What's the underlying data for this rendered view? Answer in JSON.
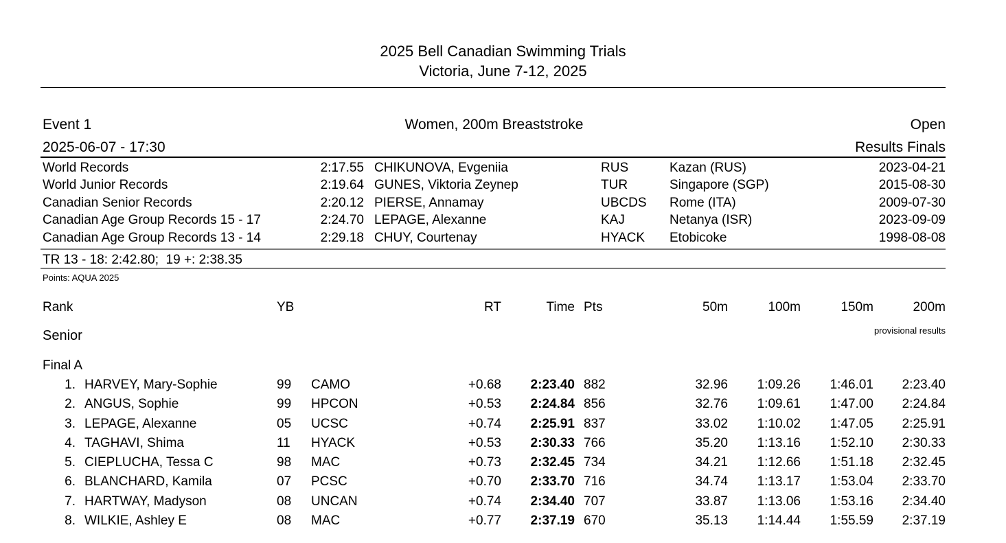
{
  "colors": {
    "text": "#000000",
    "rule_dark": "#000000",
    "rule_gray": "#7b7b7b"
  },
  "meet": {
    "title": "2025 Bell Canadian Swimming Trials",
    "subtitle": "Victoria, June 7-12, 2025"
  },
  "event": {
    "number": "Event 1",
    "name": "Women, 200m Breaststroke",
    "category": "Open",
    "datetime": "2025-06-07 - 17:30",
    "results_type": "Results Finals"
  },
  "records": [
    {
      "label": "World Records",
      "time": "2:17.55",
      "holder": "CHIKUNOVA, Evgeniia",
      "nation": "RUS",
      "location": "Kazan (RUS)",
      "date": "2023-04-21"
    },
    {
      "label": "World Junior Records",
      "time": "2:19.64",
      "holder": "GUNES, Viktoria Zeynep",
      "nation": "TUR",
      "location": "Singapore (SGP)",
      "date": "2015-08-30"
    },
    {
      "label": "Canadian Senior Records",
      "time": "2:20.12",
      "holder": "PIERSE, Annamay",
      "nation": "UBCDS",
      "location": "Rome (ITA)",
      "date": "2009-07-30"
    },
    {
      "label": "Canadian Age Group Records 15 - 17",
      "time": "2:24.70",
      "holder": "LEPAGE, Alexanne",
      "nation": "KAJ",
      "location": "Netanya (ISR)",
      "date": "2023-09-09"
    },
    {
      "label": "Canadian Age Group Records 13 - 14",
      "time": "2:29.18",
      "holder": "CHUY, Courtenay",
      "nation": "HYACK",
      "location": "Etobicoke",
      "date": "1998-08-08"
    }
  ],
  "qualifying_line": "TR 13 - 18: 2:42.80;  19 +: 2:38.35",
  "points_note": "Points: AQUA 2025",
  "table": {
    "headers": {
      "rank": "Rank",
      "yb": "YB",
      "rt": "RT",
      "time": "Time",
      "pts": "Pts",
      "s50": "50m",
      "s100": "100m",
      "s150": "150m",
      "s200": "200m"
    },
    "section": "Senior",
    "provisional": "provisional results",
    "heat": "Final A",
    "rows": [
      {
        "rank": "1.",
        "name": "HARVEY, Mary-Sophie",
        "yb": "99",
        "club": "CAMO",
        "rt": "+0.68",
        "time": "2:23.40",
        "pts": "882",
        "s50": "32.96",
        "s100": "1:09.26",
        "s150": "1:46.01",
        "s200": "2:23.40"
      },
      {
        "rank": "2.",
        "name": "ANGUS, Sophie",
        "yb": "99",
        "club": "HPCON",
        "rt": "+0.53",
        "time": "2:24.84",
        "pts": "856",
        "s50": "32.76",
        "s100": "1:09.61",
        "s150": "1:47.00",
        "s200": "2:24.84"
      },
      {
        "rank": "3.",
        "name": "LEPAGE, Alexanne",
        "yb": "05",
        "club": "UCSC",
        "rt": "+0.74",
        "time": "2:25.91",
        "pts": "837",
        "s50": "33.02",
        "s100": "1:10.02",
        "s150": "1:47.05",
        "s200": "2:25.91"
      },
      {
        "rank": "4.",
        "name": "TAGHAVI, Shima",
        "yb": "11",
        "club": "HYACK",
        "rt": "+0.53",
        "time": "2:30.33",
        "pts": "766",
        "s50": "35.20",
        "s100": "1:13.16",
        "s150": "1:52.10",
        "s200": "2:30.33"
      },
      {
        "rank": "5.",
        "name": "CIEPLUCHA, Tessa C",
        "yb": "98",
        "club": "MAC",
        "rt": "+0.73",
        "time": "2:32.45",
        "pts": "734",
        "s50": "34.21",
        "s100": "1:12.66",
        "s150": "1:51.18",
        "s200": "2:32.45"
      },
      {
        "rank": "6.",
        "name": "BLANCHARD, Kamila",
        "yb": "07",
        "club": "PCSC",
        "rt": "+0.70",
        "time": "2:33.70",
        "pts": "716",
        "s50": "34.74",
        "s100": "1:13.17",
        "s150": "1:53.04",
        "s200": "2:33.70"
      },
      {
        "rank": "7.",
        "name": "HARTWAY, Madyson",
        "yb": "08",
        "club": "UNCAN",
        "rt": "+0.74",
        "time": "2:34.40",
        "pts": "707",
        "s50": "33.87",
        "s100": "1:13.06",
        "s150": "1:53.16",
        "s200": "2:34.40"
      },
      {
        "rank": "8.",
        "name": "WILKIE, Ashley E",
        "yb": "08",
        "club": "MAC",
        "rt": "+0.77",
        "time": "2:37.19",
        "pts": "670",
        "s50": "35.13",
        "s100": "1:14.44",
        "s150": "1:55.59",
        "s200": "2:37.19"
      }
    ]
  }
}
